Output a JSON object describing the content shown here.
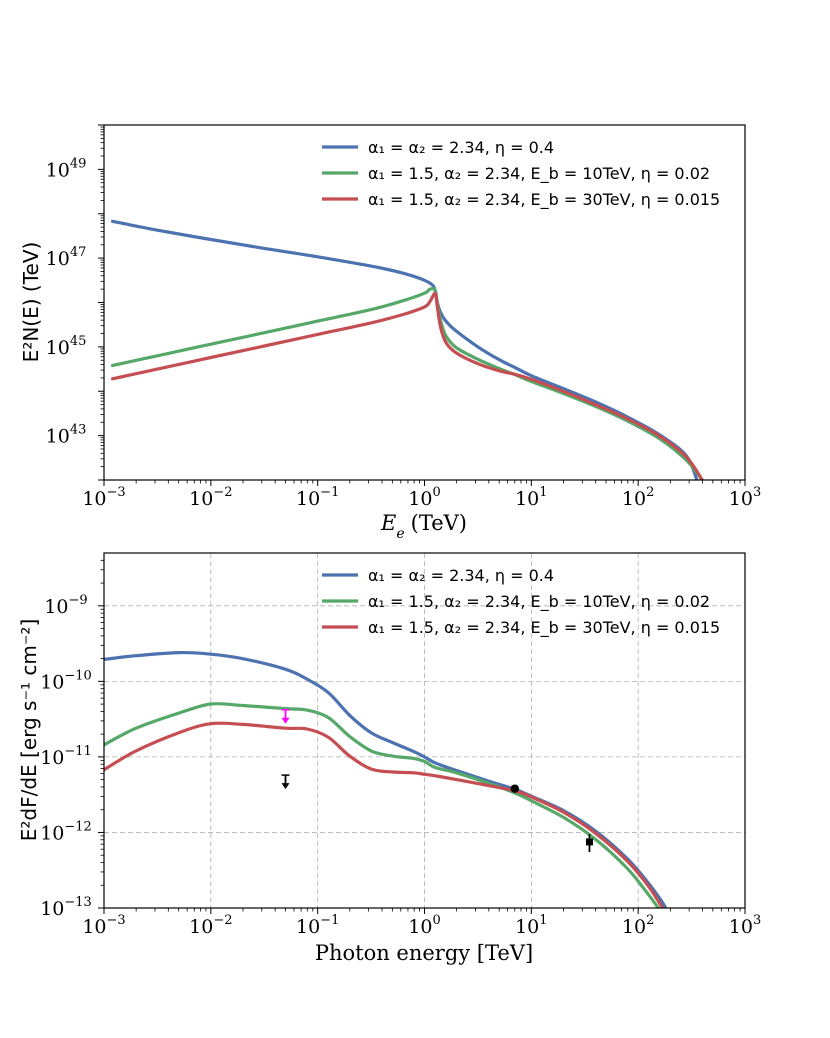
{
  "colors": {
    "blue": "#4c72b0",
    "green": "#55a868",
    "red": "#c44e52",
    "magenta": "#ff00ff",
    "black": "#000000"
  },
  "chart_data": [
    {
      "id": "top",
      "type": "line",
      "xlabel_var": "E",
      "xlabel_sub": "e",
      "xlabel_unit": "(TeV)",
      "ylabel": "E²N(E) (TeV)",
      "xscale": "log",
      "yscale": "log",
      "xlim": [
        0.001,
        1000
      ],
      "ylim": [
        1e+42,
        1e+50
      ],
      "xticks": [
        {
          "base": "10",
          "exp": "−3",
          "v": -3
        },
        {
          "base": "10",
          "exp": "−2",
          "v": -2
        },
        {
          "base": "10",
          "exp": "−1",
          "v": -1
        },
        {
          "base": "10",
          "exp": "0",
          "v": 0
        },
        {
          "base": "10",
          "exp": "1",
          "v": 1
        },
        {
          "base": "10",
          "exp": "2",
          "v": 2
        },
        {
          "base": "10",
          "exp": "3",
          "v": 3
        }
      ],
      "yticks": [
        {
          "base": "10",
          "exp": "43",
          "v": 43
        },
        {
          "base": "10",
          "exp": "45",
          "v": 45
        },
        {
          "base": "10",
          "exp": "47",
          "v": 47
        },
        {
          "base": "10",
          "exp": "49",
          "v": 49
        }
      ],
      "grid": false,
      "legend_position": "top-right",
      "series": [
        {
          "name": "α₁ = α₂ = 2.34, η = 0.4",
          "color": "#4c72b0",
          "logx": [
            -2.92,
            -2.5,
            -2,
            -1.5,
            -1,
            -0.5,
            -0.2,
            0,
            0.08,
            0.1,
            0.12,
            0.15,
            0.2,
            0.3,
            0.5,
            0.7,
            0.85,
            1,
            1.3,
            1.6,
            1.9,
            2.2,
            2.45,
            2.55
          ],
          "logy": [
            47.83,
            47.63,
            47.42,
            47.22,
            47.03,
            46.82,
            46.66,
            46.5,
            46.38,
            46.25,
            46.0,
            45.78,
            45.58,
            45.35,
            45.0,
            44.71,
            44.53,
            44.35,
            44.06,
            43.76,
            43.42,
            43.02,
            42.55,
            42.0
          ]
        },
        {
          "name": "α₁ = 1.5, α₂ = 2.34, E_b = 10TeV, η = 0.02",
          "color": "#55a868",
          "logx": [
            -2.92,
            -2.5,
            -2,
            -1.5,
            -1,
            -0.5,
            -0.2,
            0,
            0.05,
            0.1,
            0.12,
            0.15,
            0.2,
            0.3,
            0.5,
            0.7,
            0.85,
            1,
            1.3,
            1.6,
            1.9,
            2.2,
            2.45,
            2.6
          ],
          "logy": [
            44.58,
            44.8,
            45.06,
            45.32,
            45.58,
            45.84,
            46.04,
            46.21,
            46.3,
            46.28,
            45.98,
            45.6,
            45.25,
            44.98,
            44.72,
            44.51,
            44.37,
            44.22,
            43.95,
            43.66,
            43.33,
            42.93,
            42.45,
            42.0
          ]
        },
        {
          "name": "α₁ = 1.5, α₂ = 2.34, E_b = 30TeV, η = 0.015",
          "color": "#c44e52",
          "logx": [
            -2.92,
            -2.5,
            -2,
            -1.5,
            -1,
            -0.5,
            -0.2,
            0,
            0.05,
            0.1,
            0.12,
            0.15,
            0.2,
            0.3,
            0.5,
            0.7,
            0.85,
            1,
            1.3,
            1.6,
            1.9,
            2.2,
            2.45,
            2.6
          ],
          "logy": [
            44.28,
            44.5,
            44.76,
            45.02,
            45.28,
            45.54,
            45.73,
            45.9,
            46.02,
            46.2,
            45.9,
            45.45,
            45.1,
            44.86,
            44.62,
            44.46,
            44.38,
            44.27,
            44.0,
            43.7,
            43.38,
            42.99,
            42.52,
            42.0
          ]
        }
      ]
    },
    {
      "id": "bottom",
      "type": "line",
      "xlabel": "Photon energy [TeV]",
      "ylabel": "E²dF/dE [erg s⁻¹ cm⁻²]",
      "xscale": "log",
      "yscale": "log",
      "xlim": [
        0.001,
        1000
      ],
      "ylim": [
        1e-13,
        5e-09
      ],
      "xticks": [
        {
          "base": "10",
          "exp": "−3",
          "v": -3
        },
        {
          "base": "10",
          "exp": "−2",
          "v": -2
        },
        {
          "base": "10",
          "exp": "−1",
          "v": -1
        },
        {
          "base": "10",
          "exp": "0",
          "v": 0
        },
        {
          "base": "10",
          "exp": "1",
          "v": 1
        },
        {
          "base": "10",
          "exp": "2",
          "v": 2
        },
        {
          "base": "10",
          "exp": "3",
          "v": 3
        }
      ],
      "yticks": [
        {
          "base": "10",
          "exp": "−13",
          "v": -13
        },
        {
          "base": "10",
          "exp": "−12",
          "v": -12
        },
        {
          "base": "10",
          "exp": "−11",
          "v": -11
        },
        {
          "base": "10",
          "exp": "−10",
          "v": -10
        },
        {
          "base": "10",
          "exp": "−9",
          "v": -9
        }
      ],
      "grid": true,
      "legend_position": "top-right",
      "series": [
        {
          "name": "α₁ = α₂ = 2.34, η = 0.4",
          "color": "#4c72b0",
          "logx": [
            -3,
            -2.7,
            -2.3,
            -2,
            -1.7,
            -1.3,
            -1.1,
            -0.9,
            -0.7,
            -0.5,
            -0.3,
            -0.1,
            0,
            0.1,
            0.3,
            0.6,
            0.85,
            1,
            1.3,
            1.6,
            1.9,
            2.1,
            2.25,
            2.35
          ],
          "logy": [
            -9.71,
            -9.66,
            -9.62,
            -9.64,
            -9.7,
            -9.84,
            -9.97,
            -10.15,
            -10.45,
            -10.68,
            -10.81,
            -10.93,
            -11.0,
            -11.08,
            -11.18,
            -11.32,
            -11.43,
            -11.52,
            -11.71,
            -11.98,
            -12.35,
            -12.68,
            -12.98,
            -13.3
          ]
        },
        {
          "name": "α₁ = 1.5, α₂ = 2.34, E_b = 10TeV, η = 0.02",
          "color": "#55a868",
          "logx": [
            -3,
            -2.7,
            -2.3,
            -2,
            -1.7,
            -1.3,
            -1.1,
            -0.9,
            -0.7,
            -0.5,
            -0.3,
            -0.1,
            0,
            0.1,
            0.3,
            0.6,
            0.85,
            1,
            1.3,
            1.6,
            1.9,
            2.1,
            2.25,
            2.35
          ],
          "logy": [
            -10.84,
            -10.62,
            -10.42,
            -10.3,
            -10.32,
            -10.36,
            -10.38,
            -10.48,
            -10.73,
            -10.92,
            -10.99,
            -11.02,
            -11.06,
            -11.14,
            -11.21,
            -11.35,
            -11.48,
            -11.58,
            -11.8,
            -12.09,
            -12.48,
            -12.83,
            -13.12,
            -13.3
          ]
        },
        {
          "name": "α₁ = 1.5, α₂ = 2.34, E_b = 30TeV, η = 0.015",
          "color": "#c44e52",
          "logx": [
            -3,
            -2.7,
            -2.3,
            -2,
            -1.7,
            -1.3,
            -1.1,
            -0.9,
            -0.7,
            -0.5,
            -0.3,
            -0.1,
            0,
            0.1,
            0.3,
            0.6,
            0.85,
            1,
            1.3,
            1.6,
            1.9,
            2.1,
            2.25,
            2.35
          ],
          "logy": [
            -11.17,
            -10.92,
            -10.68,
            -10.56,
            -10.57,
            -10.62,
            -10.63,
            -10.74,
            -10.99,
            -11.16,
            -11.2,
            -11.21,
            -11.23,
            -11.25,
            -11.3,
            -11.38,
            -11.45,
            -11.53,
            -11.73,
            -12.01,
            -12.38,
            -12.72,
            -13.05,
            -13.3
          ]
        }
      ],
      "points": [
        {
          "kind": "upper-limit",
          "x": 0.05,
          "y": 4.5e-12,
          "color": "#000000"
        },
        {
          "kind": "upper-limit",
          "x": 0.05,
          "y": 3.3e-11,
          "color": "#ff00ff"
        },
        {
          "kind": "point",
          "x": 7.0,
          "y": 3.8e-12,
          "color": "#000000"
        },
        {
          "kind": "errorbar-square",
          "x": 35.0,
          "y": 7.5e-13,
          "ylo": 5.5e-13,
          "yhi": 9.5e-13,
          "color": "#000000"
        }
      ]
    }
  ]
}
